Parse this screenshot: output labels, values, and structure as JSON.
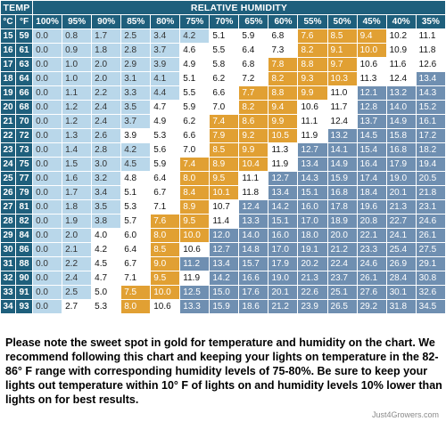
{
  "header": {
    "temp_label": "TEMP",
    "humidity_label": "RELATIVE HUMIDITY",
    "celsius_label": "°C",
    "fahrenheit_label": "°F"
  },
  "colors": {
    "header": "#1e5f7c",
    "low_range": "#b9d7ea",
    "mid_range": "#ffffff",
    "sweet_spot_gold": "#e1a033",
    "high_range": "#6f8fb1"
  },
  "chart_data": {
    "type": "table",
    "title": "",
    "columns": [
      "100%",
      "95%",
      "90%",
      "85%",
      "80%",
      "75%",
      "70%",
      "65%",
      "60%",
      "55%",
      "50%",
      "45%",
      "40%",
      "35%"
    ],
    "rows": [
      {
        "c": "15",
        "f": "59",
        "values": [
          "0.0",
          "0.8",
          "1.7",
          "2.5",
          "3.4",
          "4.2",
          "5.1",
          "5.9",
          "6.8",
          "7.6",
          "8.5",
          "9.4",
          "10.2",
          "11.1"
        ]
      },
      {
        "c": "16",
        "f": "61",
        "values": [
          "0.0",
          "0.9",
          "1.8",
          "2.8",
          "3.7",
          "4.6",
          "5.5",
          "6.4",
          "7.3",
          "8.2",
          "9.1",
          "10.0",
          "10.9",
          "11.8"
        ]
      },
      {
        "c": "17",
        "f": "63",
        "values": [
          "0.0",
          "1.0",
          "2.0",
          "2.9",
          "3.9",
          "4.9",
          "5.8",
          "6.8",
          "7.8",
          "8.8",
          "9.7",
          "10.6",
          "11.6",
          "12.6"
        ]
      },
      {
        "c": "18",
        "f": "64",
        "values": [
          "0.0",
          "1.0",
          "2.0",
          "3.1",
          "4.1",
          "5.1",
          "6.2",
          "7.2",
          "8.2",
          "9.3",
          "10.3",
          "11.3",
          "12.4",
          "13.4"
        ]
      },
      {
        "c": "19",
        "f": "66",
        "values": [
          "0.0",
          "1.1",
          "2.2",
          "3.3",
          "4.4",
          "5.5",
          "6.6",
          "7.7",
          "8.8",
          "9.9",
          "11.0",
          "12.1",
          "13.2",
          "14.3"
        ]
      },
      {
        "c": "20",
        "f": "68",
        "values": [
          "0.0",
          "1.2",
          "2.4",
          "3.5",
          "4.7",
          "5.9",
          "7.0",
          "8.2",
          "9.4",
          "10.6",
          "11.7",
          "12.8",
          "14.0",
          "15.2"
        ]
      },
      {
        "c": "21",
        "f": "70",
        "values": [
          "0.0",
          "1.2",
          "2.4",
          "3.7",
          "4.9",
          "6.2",
          "7.4",
          "8.6",
          "9.9",
          "11.1",
          "12.4",
          "13.7",
          "14.9",
          "16.1"
        ]
      },
      {
        "c": "22",
        "f": "72",
        "values": [
          "0.0",
          "1.3",
          "2.6",
          "3.9",
          "5.3",
          "6.6",
          "7.9",
          "9.2",
          "10.5",
          "11.9",
          "13.2",
          "14.5",
          "15.8",
          "17.2"
        ]
      },
      {
        "c": "23",
        "f": "73",
        "values": [
          "0.0",
          "1.4",
          "2.8",
          "4.2",
          "5.6",
          "7.0",
          "8.5",
          "9.9",
          "11.3",
          "12.7",
          "14.1",
          "15.4",
          "16.8",
          "18.2"
        ]
      },
      {
        "c": "24",
        "f": "75",
        "values": [
          "0.0",
          "1.5",
          "3.0",
          "4.5",
          "5.9",
          "7.4",
          "8.9",
          "10.4",
          "11.9",
          "13.4",
          "14.9",
          "16.4",
          "17.9",
          "19.4"
        ]
      },
      {
        "c": "25",
        "f": "77",
        "values": [
          "0.0",
          "1.6",
          "3.2",
          "4.8",
          "6.4",
          "8.0",
          "9.5",
          "11.1",
          "12.7",
          "14.3",
          "15.9",
          "17.4",
          "19.0",
          "20.5"
        ]
      },
      {
        "c": "26",
        "f": "79",
        "values": [
          "0.0",
          "1.7",
          "3.4",
          "5.1",
          "6.7",
          "8.4",
          "10.1",
          "11.8",
          "13.4",
          "15.1",
          "16.8",
          "18.4",
          "20.1",
          "21.8"
        ]
      },
      {
        "c": "27",
        "f": "81",
        "values": [
          "0.0",
          "1.8",
          "3.5",
          "5.3",
          "7.1",
          "8.9",
          "10.7",
          "12.4",
          "14.2",
          "16.0",
          "17.8",
          "19.6",
          "21.3",
          "23.1"
        ]
      },
      {
        "c": "28",
        "f": "82",
        "values": [
          "0.0",
          "1.9",
          "3.8",
          "5.7",
          "7.6",
          "9.5",
          "11.4",
          "13.3",
          "15.1",
          "17.0",
          "18.9",
          "20.8",
          "22.7",
          "24.6"
        ]
      },
      {
        "c": "29",
        "f": "84",
        "values": [
          "0.0",
          "2.0",
          "4.0",
          "6.0",
          "8.0",
          "10.0",
          "12.0",
          "14.0",
          "16.0",
          "18.0",
          "20.0",
          "22.1",
          "24.1",
          "26.1"
        ]
      },
      {
        "c": "30",
        "f": "86",
        "values": [
          "0.0",
          "2.1",
          "4.2",
          "6.4",
          "8.5",
          "10.6",
          "12.7",
          "14.8",
          "17.0",
          "19.1",
          "21.2",
          "23.3",
          "25.4",
          "27.5"
        ]
      },
      {
        "c": "31",
        "f": "88",
        "values": [
          "0.0",
          "2.2",
          "4.5",
          "6.7",
          "9.0",
          "11.2",
          "13.4",
          "15.7",
          "17.9",
          "20.2",
          "22.4",
          "24.6",
          "26.9",
          "29.1"
        ]
      },
      {
        "c": "32",
        "f": "90",
        "values": [
          "0.0",
          "2.4",
          "4.7",
          "7.1",
          "9.5",
          "11.9",
          "14.2",
          "16.6",
          "19.0",
          "21.3",
          "23.7",
          "26.1",
          "28.4",
          "30.8"
        ]
      },
      {
        "c": "33",
        "f": "91",
        "values": [
          "0.0",
          "2.5",
          "5.0",
          "7.5",
          "10.0",
          "12.5",
          "15.0",
          "17.6",
          "20.1",
          "22.6",
          "25.1",
          "27.6",
          "30.1",
          "32.6"
        ]
      },
      {
        "c": "34",
        "f": "93",
        "values": [
          "0.0",
          "2.7",
          "5.3",
          "8.0",
          "10.6",
          "13.3",
          "15.9",
          "18.6",
          "21.2",
          "23.9",
          "26.5",
          "29.2",
          "31.8",
          "34.5"
        ]
      }
    ],
    "cell_classes": [
      [
        "lb",
        "lb",
        "lb",
        "lb",
        "lb",
        "lb",
        "wh",
        "wh",
        "wh",
        "gd",
        "gd",
        "gd",
        "wh",
        "wh"
      ],
      [
        "lb",
        "lb",
        "lb",
        "lb",
        "lb",
        "wh",
        "wh",
        "wh",
        "wh",
        "gd",
        "gd",
        "gd",
        "wh",
        "wh"
      ],
      [
        "lb",
        "lb",
        "lb",
        "lb",
        "lb",
        "wh",
        "wh",
        "wh",
        "gd",
        "gd",
        "gd",
        "wh",
        "wh",
        "wh"
      ],
      [
        "lb",
        "lb",
        "lb",
        "lb",
        "lb",
        "wh",
        "wh",
        "wh",
        "gd",
        "gd",
        "gd",
        "wh",
        "wh",
        "bs"
      ],
      [
        "lb",
        "lb",
        "lb",
        "lb",
        "lb",
        "wh",
        "wh",
        "gd",
        "gd",
        "gd",
        "wh",
        "bs",
        "bs",
        "bs"
      ],
      [
        "lb",
        "lb",
        "lb",
        "lb",
        "wh",
        "wh",
        "wh",
        "gd",
        "gd",
        "wh",
        "wh",
        "bs",
        "bs",
        "bs"
      ],
      [
        "lb",
        "lb",
        "lb",
        "lb",
        "wh",
        "wh",
        "gd",
        "gd",
        "gd",
        "wh",
        "wh",
        "bs",
        "bs",
        "bs"
      ],
      [
        "lb",
        "lb",
        "lb",
        "wh",
        "wh",
        "wh",
        "gd",
        "gd",
        "gd",
        "wh",
        "bs",
        "bs",
        "bs",
        "bs"
      ],
      [
        "lb",
        "lb",
        "lb",
        "lb",
        "wh",
        "wh",
        "gd",
        "gd",
        "wh",
        "bs",
        "bs",
        "bs",
        "bs",
        "bs"
      ],
      [
        "lb",
        "lb",
        "lb",
        "lb",
        "wh",
        "gd",
        "gd",
        "gd",
        "wh",
        "bs",
        "bs",
        "bs",
        "bs",
        "bs"
      ],
      [
        "lb",
        "lb",
        "lb",
        "wh",
        "wh",
        "gd",
        "gd",
        "wh",
        "bs",
        "bs",
        "bs",
        "bs",
        "bs",
        "bs"
      ],
      [
        "lb",
        "lb",
        "lb",
        "wh",
        "wh",
        "gd",
        "gd",
        "wh",
        "bs",
        "bs",
        "bs",
        "bs",
        "bs",
        "bs"
      ],
      [
        "lb",
        "lb",
        "lb",
        "wh",
        "wh",
        "gd",
        "wh",
        "bs",
        "bs",
        "bs",
        "bs",
        "bs",
        "bs",
        "bs"
      ],
      [
        "lb",
        "lb",
        "lb",
        "wh",
        "gd",
        "gd",
        "wh",
        "bs",
        "bs",
        "bs",
        "bs",
        "bs",
        "bs",
        "bs"
      ],
      [
        "lb",
        "lb",
        "wh",
        "wh",
        "gd",
        "gd",
        "bs",
        "bs",
        "bs",
        "bs",
        "bs",
        "bs",
        "bs",
        "bs"
      ],
      [
        "lb",
        "lb",
        "wh",
        "wh",
        "gd",
        "wh",
        "bs",
        "bs",
        "bs",
        "bs",
        "bs",
        "bs",
        "bs",
        "bs"
      ],
      [
        "lb",
        "lb",
        "wh",
        "wh",
        "gd",
        "bs",
        "bs",
        "bs",
        "bs",
        "bs",
        "bs",
        "bs",
        "bs",
        "bs"
      ],
      [
        "lb",
        "lb",
        "wh",
        "wh",
        "gd",
        "wh",
        "bs",
        "bs",
        "bs",
        "bs",
        "bs",
        "bs",
        "bs",
        "bs"
      ],
      [
        "lb",
        "lb",
        "wh",
        "gd",
        "gd",
        "bs",
        "bs",
        "bs",
        "bs",
        "bs",
        "bs",
        "bs",
        "bs",
        "bs"
      ],
      [
        "lb",
        "wh",
        "wh",
        "gd",
        "wh",
        "bs",
        "bs",
        "bs",
        "bs",
        "bs",
        "bs",
        "bs",
        "bs",
        "bs"
      ]
    ]
  },
  "watermark": "Just4Growers.com",
  "note": "Please note the sweet spot in gold for temperature and humidity on the chart. We recommend following this chart and keeping your lights on temperature  in the 82-86° F range with corresponding  humidity levels of 75-80%. Be sure to keep your lights out temperature within 10° F of lights on and humidity levels 10% lower than lights on for best results."
}
